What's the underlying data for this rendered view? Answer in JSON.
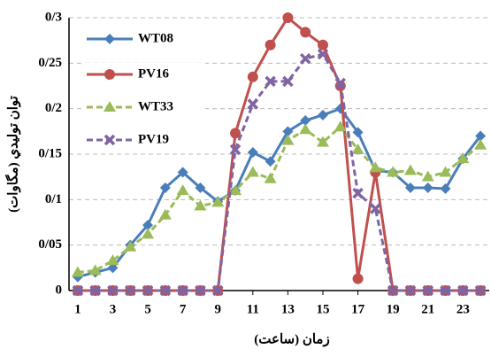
{
  "chart_data": {
    "type": "line",
    "xlabel": "زمان (ساعت)",
    "ylabel": "توان توليدي (مگاوات)",
    "x": [
      1,
      2,
      3,
      4,
      5,
      6,
      7,
      8,
      9,
      10,
      11,
      12,
      13,
      14,
      15,
      16,
      17,
      18,
      19,
      20,
      21,
      22,
      23,
      24
    ],
    "xlim": [
      0.5,
      24.5
    ],
    "xticks": [
      1,
      3,
      5,
      7,
      9,
      11,
      13,
      15,
      17,
      19,
      21,
      23
    ],
    "ylim": [
      0,
      0.3
    ],
    "yticks": [
      0,
      {
        "value": 0.05,
        "label": "0/05"
      },
      {
        "value": 0.1,
        "label": "0/1"
      },
      {
        "value": 0.15,
        "label": "0/15"
      },
      {
        "value": 0.2,
        "label": "0/2"
      },
      {
        "value": 0.25,
        "label": "0/25"
      },
      {
        "value": 0.3,
        "label": "0/3"
      }
    ],
    "grid": true,
    "legend": "upper-left",
    "series": [
      {
        "name": "WT08",
        "color": "#4a7ebb",
        "marker": "diamond",
        "dashed": false,
        "values": [
          0.015,
          0.02,
          0.025,
          0.05,
          0.072,
          0.113,
          0.13,
          0.113,
          0.098,
          0.11,
          0.152,
          0.142,
          0.175,
          0.187,
          0.193,
          0.2,
          0.174,
          0.132,
          0.13,
          0.113,
          0.113,
          0.112,
          0.145,
          0.17
        ]
      },
      {
        "name": "PV16",
        "color": "#c0504d",
        "marker": "circle",
        "dashed": false,
        "values": [
          0,
          0,
          0,
          0,
          0,
          0,
          0,
          0,
          0,
          0.173,
          0.235,
          0.27,
          0.3,
          0.284,
          0.27,
          0.225,
          0.013,
          0.13,
          0,
          0,
          0,
          0,
          0,
          0
        ]
      },
      {
        "name": "WT33",
        "color": "#9bbb59",
        "marker": "triangle",
        "dashed": true,
        "values": [
          0.02,
          0.022,
          0.033,
          0.048,
          0.062,
          0.083,
          0.11,
          0.093,
          0.097,
          0.11,
          0.13,
          0.123,
          0.165,
          0.177,
          0.163,
          0.18,
          0.155,
          0.135,
          0.13,
          0.132,
          0.125,
          0.13,
          0.145,
          0.16
        ]
      },
      {
        "name": "PV19",
        "color": "#8064a2",
        "marker": "x",
        "dashed": true,
        "values": [
          0,
          0,
          0,
          0,
          0,
          0,
          0,
          0,
          0,
          0.155,
          0.205,
          0.23,
          0.23,
          0.255,
          0.26,
          0.228,
          0.107,
          0.09,
          0,
          0,
          0,
          0,
          0,
          0
        ]
      }
    ]
  }
}
